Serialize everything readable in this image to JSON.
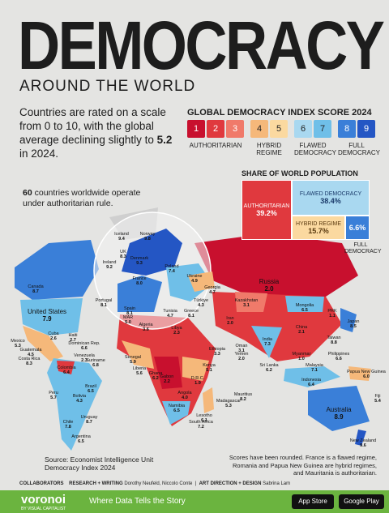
{
  "header": {
    "title": "DEMOCRACY",
    "subtitle": "AROUND THE WORLD"
  },
  "intro": {
    "before": "Countries are rated on a scale from 0 to 10, with the global average declining slightly to ",
    "highlight": "5.2",
    "after": " in 2024."
  },
  "callout": {
    "highlight": "60",
    "text": " countries worldwide operate under authoritarian rule."
  },
  "legend": {
    "title": "GLOBAL DEMOCRACY INDEX SCORE 2024",
    "scale": [
      "1",
      "2",
      "3",
      "4",
      "5",
      "6",
      "7",
      "8",
      "9"
    ],
    "groups": [
      "AUTHORITARIAN",
      "HYBRID REGIME",
      "FLAWED DEMOCRACY",
      "FULL DEMOCRACY"
    ]
  },
  "population": {
    "title": "SHARE OF WORLD POPULATION",
    "blocks": [
      {
        "name": "AUTHORITARIAN",
        "share": "39.2%"
      },
      {
        "name": "FLAWED DEMOCRACY",
        "share": "38.4%"
      },
      {
        "name": "HYBRID REGIME",
        "share": "15.7%"
      },
      {
        "name": "FULL DEMOCRACY",
        "share": "6.6%"
      }
    ]
  },
  "countries": [
    {
      "name": "Canada",
      "score": "8.7"
    },
    {
      "name": "United States",
      "score": "7.9"
    },
    {
      "name": "Mexico",
      "score": "5.3"
    },
    {
      "name": "Cuba",
      "score": "2.6"
    },
    {
      "name": "Haiti",
      "score": "2.7"
    },
    {
      "name": "Dominican Rep.",
      "score": "6.6"
    },
    {
      "name": "Guatemala",
      "score": "4.5"
    },
    {
      "name": "Costa Rica",
      "score": "8.3"
    },
    {
      "name": "Colombia",
      "score": "6.4"
    },
    {
      "name": "Venezuela",
      "score": "2.3"
    },
    {
      "name": "Suriname",
      "score": "6.8"
    },
    {
      "name": "Peru",
      "score": "5.7"
    },
    {
      "name": "Brazil",
      "score": "6.5"
    },
    {
      "name": "Bolivia",
      "score": "4.3"
    },
    {
      "name": "Chile",
      "score": "7.8"
    },
    {
      "name": "Uruguay",
      "score": "8.7"
    },
    {
      "name": "Argentina",
      "score": "6.5"
    },
    {
      "name": "Iceland",
      "score": "9.4"
    },
    {
      "name": "Norway",
      "score": "9.8"
    },
    {
      "name": "Ireland",
      "score": "9.2"
    },
    {
      "name": "UK",
      "score": "8.3"
    },
    {
      "name": "Denmark",
      "score": "9.3"
    },
    {
      "name": "France",
      "score": "8.0"
    },
    {
      "name": "Portugal",
      "score": "8.1"
    },
    {
      "name": "Spain",
      "score": "8.1"
    },
    {
      "name": "Poland",
      "score": "7.4"
    },
    {
      "name": "Ukraine",
      "score": "4.9"
    },
    {
      "name": "Georgia",
      "score": "4.7"
    },
    {
      "name": "Türkiye",
      "score": "4.3"
    },
    {
      "name": "Greece",
      "score": "8.1"
    },
    {
      "name": "Tunisia",
      "score": "4.7"
    },
    {
      "name": "MAR",
      "score": "5.0"
    },
    {
      "name": "Algeria",
      "score": "3.6"
    },
    {
      "name": "Libya",
      "score": "2.3"
    },
    {
      "name": "Russia",
      "score": "2.0"
    },
    {
      "name": "Kazakhstan",
      "score": "3.1"
    },
    {
      "name": "Mongolia",
      "score": "6.5"
    },
    {
      "name": "China",
      "score": "2.1"
    },
    {
      "name": "PRK",
      "score": "1.1"
    },
    {
      "name": "Japan",
      "score": "8.5"
    },
    {
      "name": "Taiwan",
      "score": "8.8"
    },
    {
      "name": "Iran",
      "score": "2.0"
    },
    {
      "name": "India",
      "score": "7.3"
    },
    {
      "name": "Oman",
      "score": "3.1"
    },
    {
      "name": "Yemen",
      "score": "2.0"
    },
    {
      "name": "Sri Lanka",
      "score": "6.2"
    },
    {
      "name": "Myanmar",
      "score": "1.0"
    },
    {
      "name": "Philippines",
      "score": "6.6"
    },
    {
      "name": "Malaysia",
      "score": "7.1"
    },
    {
      "name": "Indonesia",
      "score": "6.4"
    },
    {
      "name": "Papua New Guinea",
      "score": "6.0"
    },
    {
      "name": "Fiji",
      "score": "5.4"
    },
    {
      "name": "Australia",
      "score": "8.9"
    },
    {
      "name": "New Zealand",
      "score": "9.6"
    },
    {
      "name": "Senegal",
      "score": "5.9"
    },
    {
      "name": "Liberia",
      "score": "5.6"
    },
    {
      "name": "Ghana",
      "score": "6.2"
    },
    {
      "name": "Gabon",
      "score": "2.2"
    },
    {
      "name": "D.R.C.",
      "score": "1.9"
    },
    {
      "name": "Kenya",
      "score": "5.1"
    },
    {
      "name": "Ethiopia",
      "score": "3.3"
    },
    {
      "name": "Angola",
      "score": "4.0"
    },
    {
      "name": "Namibia",
      "score": "6.5"
    },
    {
      "name": "South Africa",
      "score": "7.2"
    },
    {
      "name": "Lesotho",
      "score": "6.1"
    },
    {
      "name": "Madagascar",
      "score": "5.3"
    },
    {
      "name": "Mauritius",
      "score": "8.2"
    }
  ],
  "source": "Source: Economist Intelligence Unit Democracy Index 2024",
  "note": "Scores have been rounded. France is a flawed regime, Romania and Papua New Guinea are hybrid regimes, and Mauritania is authoritarian.",
  "credits": {
    "label": "COLLABORATORS",
    "research_label": "RESEARCH + WRITING",
    "research": "Dorothy Neufeld, Niccolo Conte",
    "design_label": "ART DIRECTION + DESIGN",
    "design": "Sabrina Lam"
  },
  "footer": {
    "brand": "voronoi",
    "by": "BY VISUAL CAPITALIST",
    "tagline": "Where Data Tells the Story",
    "app_store": "App Store",
    "google_play": "Google Play"
  }
}
